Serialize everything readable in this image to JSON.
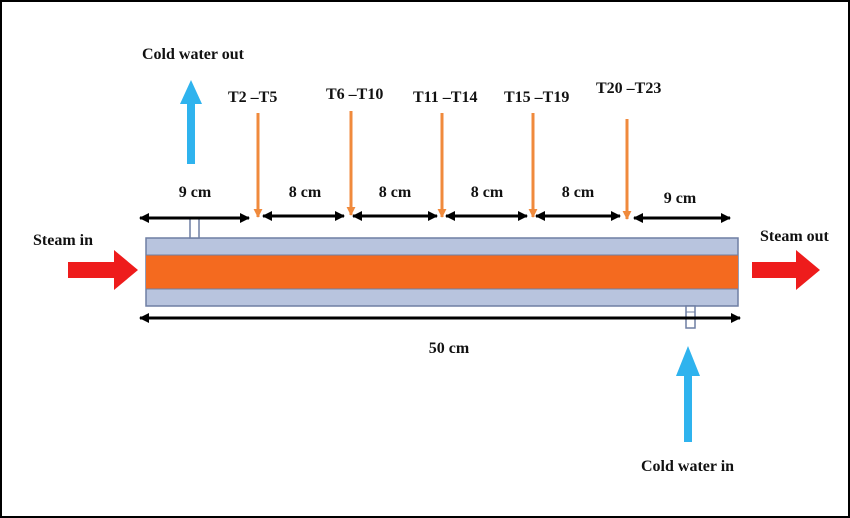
{
  "labels": {
    "cold_water_out": "Cold water out",
    "cold_water_in": "Cold water in",
    "steam_in": "Steam in",
    "steam_out": "Steam out",
    "total_length": "50 cm"
  },
  "probes": [
    "T2 –T5",
    "T6 –T10",
    "T11 –T14",
    "T15 –T19",
    "T20 –T23"
  ],
  "segments": [
    "9 cm",
    "8 cm",
    "8 cm",
    "8 cm",
    "8 cm",
    "9 cm"
  ],
  "colors": {
    "steam_arrow": "#ee1c1c",
    "water_arrow": "#2fb3ee",
    "probe_arrow": "#f08a3c",
    "core": "#f46a1f",
    "jacket": "#b8c4de",
    "dimension": "#000000"
  }
}
